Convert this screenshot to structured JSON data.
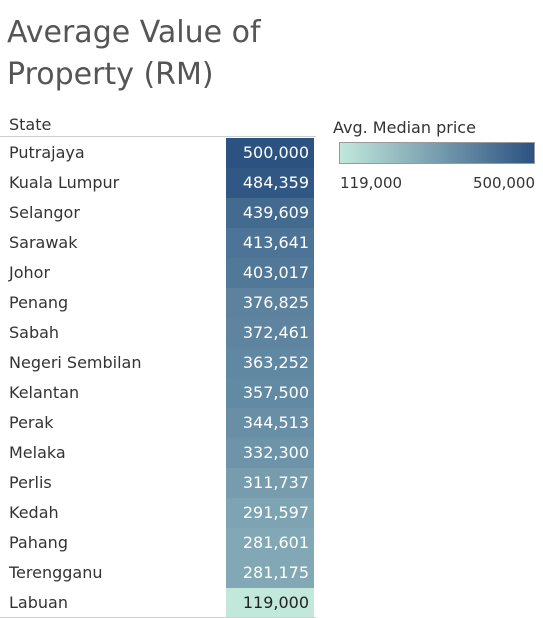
{
  "chart_data": {
    "type": "heatmap",
    "title": "Average Value of Property (RM)",
    "row_header": "State",
    "legend_title": "Avg. Median price",
    "legend_min": "119,000",
    "legend_max": "500,000",
    "min_value": 119000,
    "max_value": 500000,
    "color_low": "#c2e8dc",
    "color_high": "#2b5281",
    "rows": [
      {
        "state": "Putrajaya",
        "value": 500000
      },
      {
        "state": "Kuala Lumpur",
        "value": 484359
      },
      {
        "state": "Selangor",
        "value": 439609
      },
      {
        "state": "Sarawak",
        "value": 413641
      },
      {
        "state": "Johor",
        "value": 403017
      },
      {
        "state": "Penang",
        "value": 376825
      },
      {
        "state": "Sabah",
        "value": 372461
      },
      {
        "state": "Negeri Sembilan",
        "value": 363252
      },
      {
        "state": "Kelantan",
        "value": 357500
      },
      {
        "state": "Perak",
        "value": 344513
      },
      {
        "state": "Melaka",
        "value": 332300
      },
      {
        "state": "Perlis",
        "value": 311737
      },
      {
        "state": "Kedah",
        "value": 291597
      },
      {
        "state": "Pahang",
        "value": 281601
      },
      {
        "state": "Terengganu",
        "value": 281175
      },
      {
        "state": "Labuan",
        "value": 119000
      }
    ]
  }
}
